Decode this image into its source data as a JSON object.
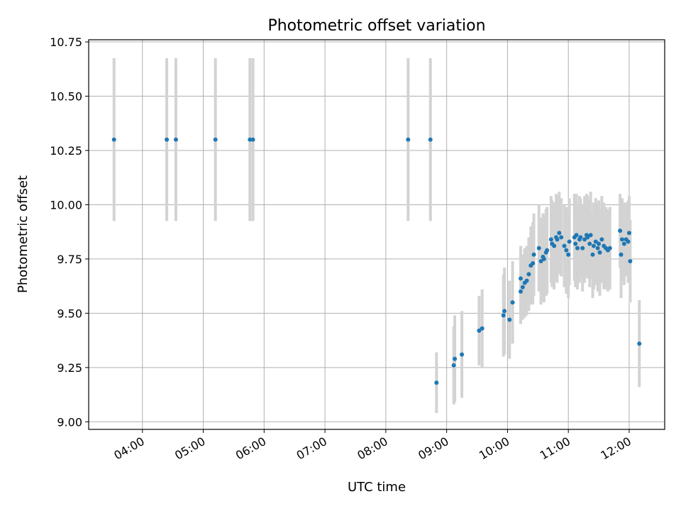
{
  "chart_data": {
    "type": "scatter",
    "title": "Photometric offset variation",
    "xlabel": "UTC time",
    "ylabel": "Photometric offset",
    "xlim": [
      "03:07",
      "12:35"
    ],
    "ylim": [
      8.965,
      10.76
    ],
    "grid": true,
    "x_ticks": [
      "04:00",
      "05:00",
      "06:00",
      "07:00",
      "08:00",
      "09:00",
      "10:00",
      "11:00",
      "12:00"
    ],
    "y_ticks": [
      "9.00",
      "9.25",
      "9.50",
      "9.75",
      "10.00",
      "10.25",
      "10.50",
      "10.75"
    ],
    "colors": {
      "points": "#1f77b4",
      "errorbars": "#d3d3d3",
      "grid": "#b0b0b0"
    },
    "series": [
      {
        "x": [
          "03:32",
          "04:24",
          "04:33",
          "05:12",
          "05:46",
          "05:49",
          "08:22",
          "08:44",
          "08:50",
          "09:07",
          "09:08",
          "09:15",
          "09:32",
          "09:35",
          "09:56",
          "09:57",
          "10:02",
          "10:05",
          "10:13",
          "10:13",
          "10:15",
          "10:17",
          "10:19",
          "10:21",
          "10:23",
          "10:25",
          "10:26",
          "10:31",
          "10:33",
          "10:35",
          "10:36",
          "10:38",
          "10:39",
          "10:43",
          "10:44",
          "10:46",
          "10:48",
          "10:49",
          "10:51",
          "10:53",
          "10:56",
          "10:58",
          "11:00",
          "11:01",
          "11:06",
          "11:07",
          "11:08",
          "11:09",
          "11:11",
          "11:12",
          "11:14",
          "11:16",
          "11:18",
          "11:19",
          "11:21",
          "11:22",
          "11:24",
          "11:25",
          "11:27",
          "11:29",
          "11:30",
          "11:31",
          "11:33",
          "11:35",
          "11:37",
          "11:39",
          "11:41",
          "11:51",
          "11:52",
          "11:53",
          "11:55",
          "11:57",
          "11:59",
          "12:00",
          "12:01",
          "12:10"
        ],
        "y": [
          10.3,
          10.3,
          10.3,
          10.3,
          10.3,
          10.3,
          10.3,
          10.3,
          9.18,
          9.26,
          9.29,
          9.31,
          9.42,
          9.43,
          9.49,
          9.51,
          9.47,
          9.55,
          9.66,
          9.6,
          9.62,
          9.64,
          9.65,
          9.68,
          9.72,
          9.73,
          9.77,
          9.8,
          9.74,
          9.76,
          9.75,
          9.78,
          9.79,
          9.84,
          9.82,
          9.81,
          9.85,
          9.84,
          9.87,
          9.85,
          9.81,
          9.79,
          9.77,
          9.83,
          9.85,
          9.82,
          9.86,
          9.8,
          9.84,
          9.85,
          9.8,
          9.84,
          9.86,
          9.85,
          9.82,
          9.86,
          9.77,
          9.81,
          9.83,
          9.8,
          9.82,
          9.78,
          9.84,
          9.81,
          9.8,
          9.79,
          9.8,
          9.88,
          9.77,
          9.84,
          9.82,
          9.84,
          9.83,
          9.87,
          9.74,
          9.36
        ],
        "yerr": [
          0.375,
          0.375,
          0.375,
          0.375,
          0.375,
          0.375,
          0.375,
          0.375,
          0.14,
          0.18,
          0.2,
          0.2,
          0.16,
          0.18,
          0.19,
          0.2,
          0.18,
          0.19,
          0.15,
          0.15,
          0.15,
          0.16,
          0.16,
          0.17,
          0.18,
          0.19,
          0.19,
          0.2,
          0.2,
          0.2,
          0.2,
          0.2,
          0.2,
          0.2,
          0.2,
          0.2,
          0.2,
          0.2,
          0.19,
          0.18,
          0.19,
          0.2,
          0.2,
          0.2,
          0.2,
          0.2,
          0.19,
          0.19,
          0.2,
          0.18,
          0.2,
          0.2,
          0.19,
          0.19,
          0.2,
          0.2,
          0.2,
          0.2,
          0.2,
          0.2,
          0.2,
          0.2,
          0.2,
          0.2,
          0.19,
          0.19,
          0.19,
          0.17,
          0.2,
          0.19,
          0.19,
          0.17,
          0.19,
          0.17,
          0.19,
          0.2
        ]
      }
    ]
  }
}
